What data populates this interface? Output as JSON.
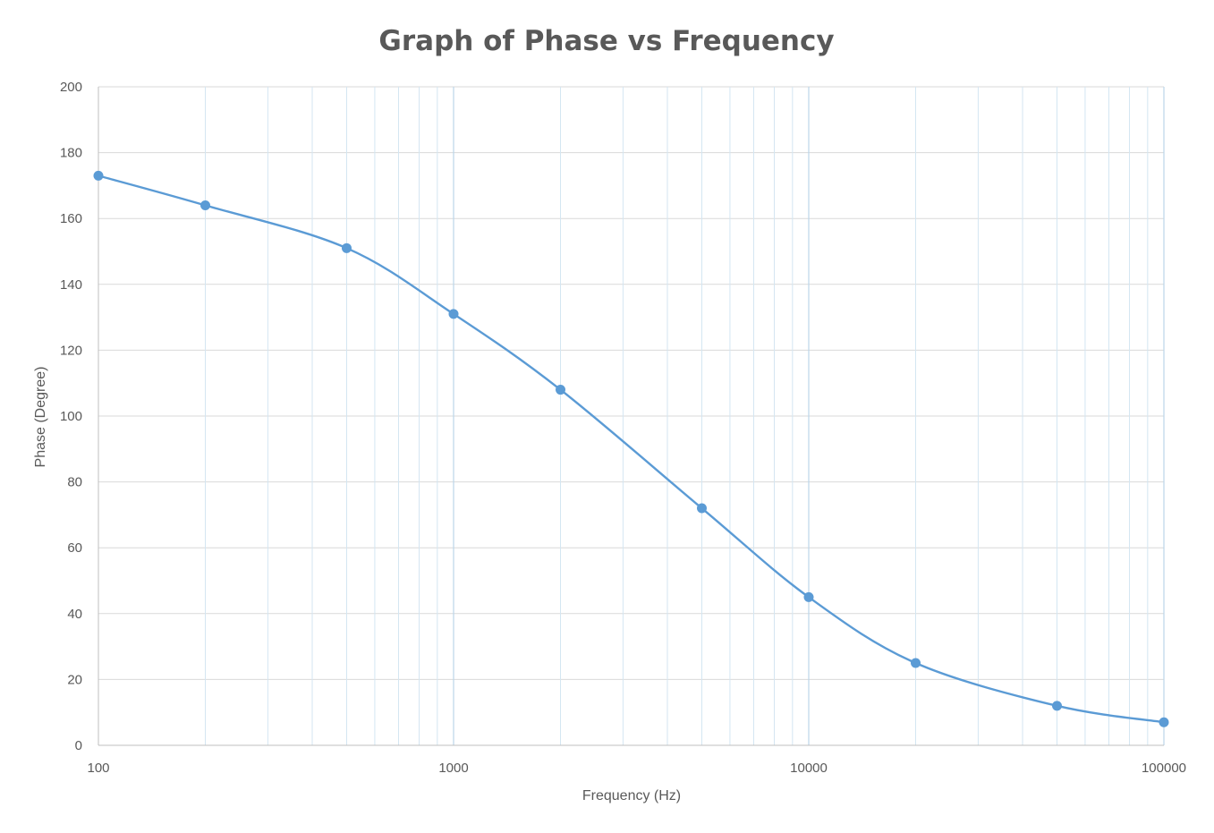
{
  "chart_data": {
    "type": "line",
    "title": "Graph of Phase vs Frequency",
    "xlabel": "Frequency (Hz)",
    "ylabel": "Phase (Degree)",
    "xscale": "log",
    "xlim": [
      100,
      100000
    ],
    "ylim": [
      0,
      200
    ],
    "xticks": [
      "100",
      "1000",
      "10000",
      "100000"
    ],
    "yticks": [
      "0",
      "20",
      "40",
      "60",
      "80",
      "100",
      "120",
      "140",
      "160",
      "180",
      "200"
    ],
    "grid": {
      "horizontal": true,
      "vertical_major": true,
      "vertical_minor": true
    },
    "legend": "none",
    "smooth": true,
    "series": [
      {
        "x": [
          100,
          200,
          500,
          1000,
          2000,
          5000,
          10000,
          20000,
          50000,
          100000
        ],
        "y": [
          173,
          164,
          151,
          131,
          108,
          72,
          45,
          25,
          12,
          7
        ],
        "color": "#5b9bd5"
      }
    ]
  }
}
